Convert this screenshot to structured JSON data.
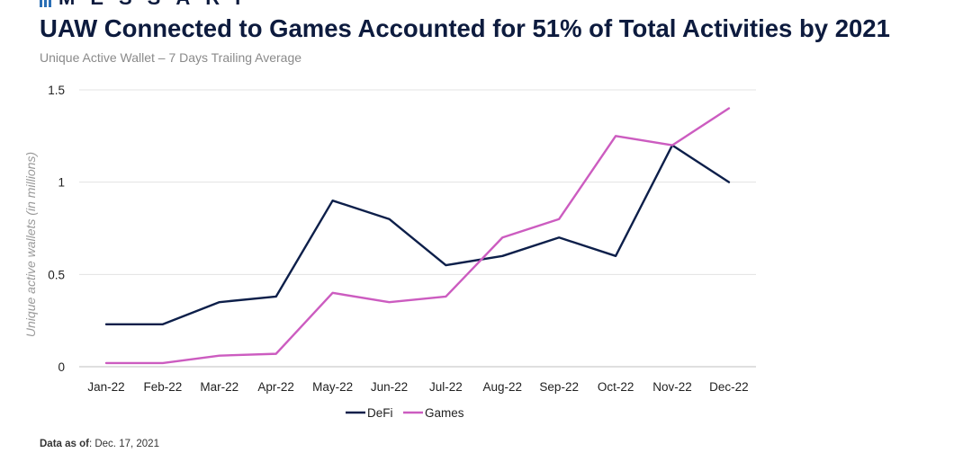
{
  "brand": {
    "name": "MESSARI"
  },
  "title": "UAW Connected to Games Accounted for 51% of Total Activities by 2021",
  "subtitle": "Unique Active Wallet – 7 Days Trailing Average",
  "footer": {
    "label": "Data as of",
    "value": ": Dec. 17, 2021"
  },
  "chart_data": {
    "type": "line",
    "ylabel": "Unique active wallets (in millions)",
    "xlabel": "",
    "ylim": [
      0,
      1.5
    ],
    "yticks": [
      "0",
      "0.5",
      "1",
      "1.5"
    ],
    "ytick_values": [
      0,
      0.5,
      1,
      1.5
    ],
    "grid": true,
    "legend": "bottom-center",
    "categories": [
      "Jan-22",
      "Feb-22",
      "Mar-22",
      "Apr-22",
      "May-22",
      "Jun-22",
      "Jul-22",
      "Aug-22",
      "Sep-22",
      "Oct-22",
      "Nov-22",
      "Dec-22"
    ],
    "series": [
      {
        "name": "DeFi",
        "color": "#0d1f4a",
        "values": [
          0.23,
          0.23,
          0.35,
          0.38,
          0.9,
          0.8,
          0.55,
          0.6,
          0.7,
          0.6,
          1.2,
          1.0
        ]
      },
      {
        "name": "Games",
        "color": "#cc5cc0",
        "values": [
          0.02,
          0.02,
          0.06,
          0.07,
          0.4,
          0.35,
          0.38,
          0.7,
          0.8,
          1.25,
          1.2,
          1.4
        ]
      }
    ]
  }
}
